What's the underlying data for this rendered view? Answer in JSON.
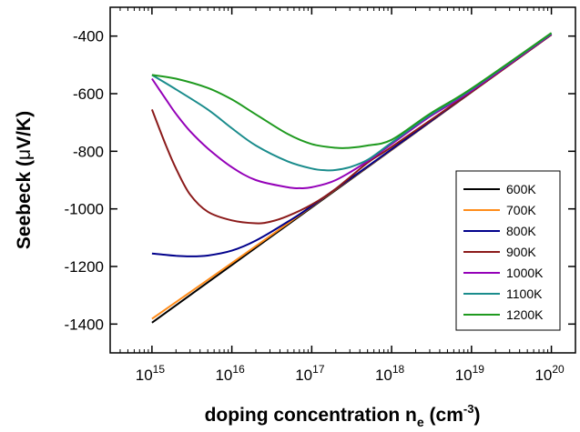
{
  "chart_data": {
    "type": "line",
    "xscale": "log",
    "xlim": [
      300000000000000.0,
      2e+20
    ],
    "ylim": [
      -1500,
      -300
    ],
    "grid": false,
    "legend_position": "lower-right",
    "x_ticks": [
      {
        "value": 1000000000000000.0,
        "base": "10",
        "exp": "15"
      },
      {
        "value": 1e+16,
        "base": "10",
        "exp": "16"
      },
      {
        "value": 1e+17,
        "base": "10",
        "exp": "17"
      },
      {
        "value": 1e+18,
        "base": "10",
        "exp": "18"
      },
      {
        "value": 1e+19,
        "base": "10",
        "exp": "19"
      },
      {
        "value": 1e+20,
        "base": "10",
        "exp": "20"
      }
    ],
    "y_ticks": [
      {
        "value": -400,
        "label": "-400"
      },
      {
        "value": -600,
        "label": "-600"
      },
      {
        "value": -800,
        "label": "-800"
      },
      {
        "value": -1000,
        "label": "-1000"
      },
      {
        "value": -1200,
        "label": "-1200"
      },
      {
        "value": -1400,
        "label": "-1400"
      }
    ],
    "xlabel": {
      "main": "doping concentration n",
      "sub": "e",
      "unit_open": " (cm",
      "unit_exp": "-3",
      "unit_close": ")"
    },
    "ylabel": {
      "pre": "Seebeck (",
      "symbol": "μ",
      "post": "V/K)"
    },
    "series": [
      {
        "name": "600K",
        "color": "#000000",
        "x": [
          1000000000000000.0,
          1e+16,
          1e+17,
          1e+18,
          1e+19,
          1e+20
        ],
        "y": [
          -1395,
          -1195,
          -995,
          -795,
          -595,
          -395
        ]
      },
      {
        "name": "700K",
        "color": "#ff8c1a",
        "x": [
          1000000000000000.0,
          1e+16,
          1e+17,
          1e+18,
          1e+19,
          1e+20
        ],
        "y": [
          -1382,
          -1188,
          -992,
          -794,
          -595,
          -395
        ]
      },
      {
        "name": "800K",
        "color": "#00008b",
        "x": [
          1000000000000000.0,
          1500000000000000.0,
          2000000000000000.0,
          3000000000000000.0,
          5000000000000000.0,
          1e+16,
          2e+16,
          5e+16,
          1e+17,
          1e+18,
          1e+19,
          1e+20
        ],
        "y": [
          -1155,
          -1160,
          -1163,
          -1165,
          -1162,
          -1145,
          -1110,
          -1045,
          -990,
          -793,
          -594,
          -395
        ]
      },
      {
        "name": "900K",
        "color": "#8b1a1a",
        "x": [
          1000000000000000.0,
          1500000000000000.0,
          2000000000000000.0,
          3000000000000000.0,
          5000000000000000.0,
          1e+16,
          2e+16,
          3e+16,
          5e+16,
          1e+17,
          2e+17,
          5e+17,
          1e+18,
          1e+19,
          1e+20
        ],
        "y": [
          -655,
          -780,
          -860,
          -950,
          -1010,
          -1040,
          -1050,
          -1045,
          -1025,
          -985,
          -930,
          -840,
          -785,
          -593,
          -395
        ]
      },
      {
        "name": "1000K",
        "color": "#9400b8",
        "x": [
          1000000000000000.0,
          1500000000000000.0,
          2000000000000000.0,
          3000000000000000.0,
          5000000000000000.0,
          1e+16,
          2e+16,
          5e+16,
          7e+16,
          1e+17,
          2e+17,
          5e+17,
          1e+18,
          3e+18,
          1e+19,
          1e+20
        ],
        "y": [
          -548,
          -620,
          -670,
          -730,
          -790,
          -855,
          -900,
          -925,
          -928,
          -925,
          -900,
          -835,
          -775,
          -680,
          -590,
          -393
        ]
      },
      {
        "name": "1100K",
        "color": "#1a8c8c",
        "x": [
          1000000000000000.0,
          2000000000000000.0,
          5000000000000000.0,
          1e+16,
          2e+16,
          5e+16,
          1e+17,
          1.5e+17,
          2e+17,
          3e+17,
          5e+17,
          1e+18,
          3e+18,
          1e+19,
          1e+20
        ],
        "y": [
          -535,
          -585,
          -655,
          -720,
          -780,
          -835,
          -860,
          -866,
          -865,
          -855,
          -830,
          -770,
          -675,
          -585,
          -391
        ]
      },
      {
        "name": "1200K",
        "color": "#1f9a1f",
        "x": [
          1000000000000000.0,
          2000000000000000.0,
          5000000000000000.0,
          1e+16,
          2e+16,
          5e+16,
          1e+17,
          2e+17,
          3e+17,
          5e+17,
          1e+18,
          3e+18,
          1e+19,
          1e+20
        ],
        "y": [
          -535,
          -548,
          -580,
          -620,
          -672,
          -740,
          -775,
          -788,
          -788,
          -780,
          -760,
          -670,
          -582,
          -389
        ]
      }
    ]
  }
}
